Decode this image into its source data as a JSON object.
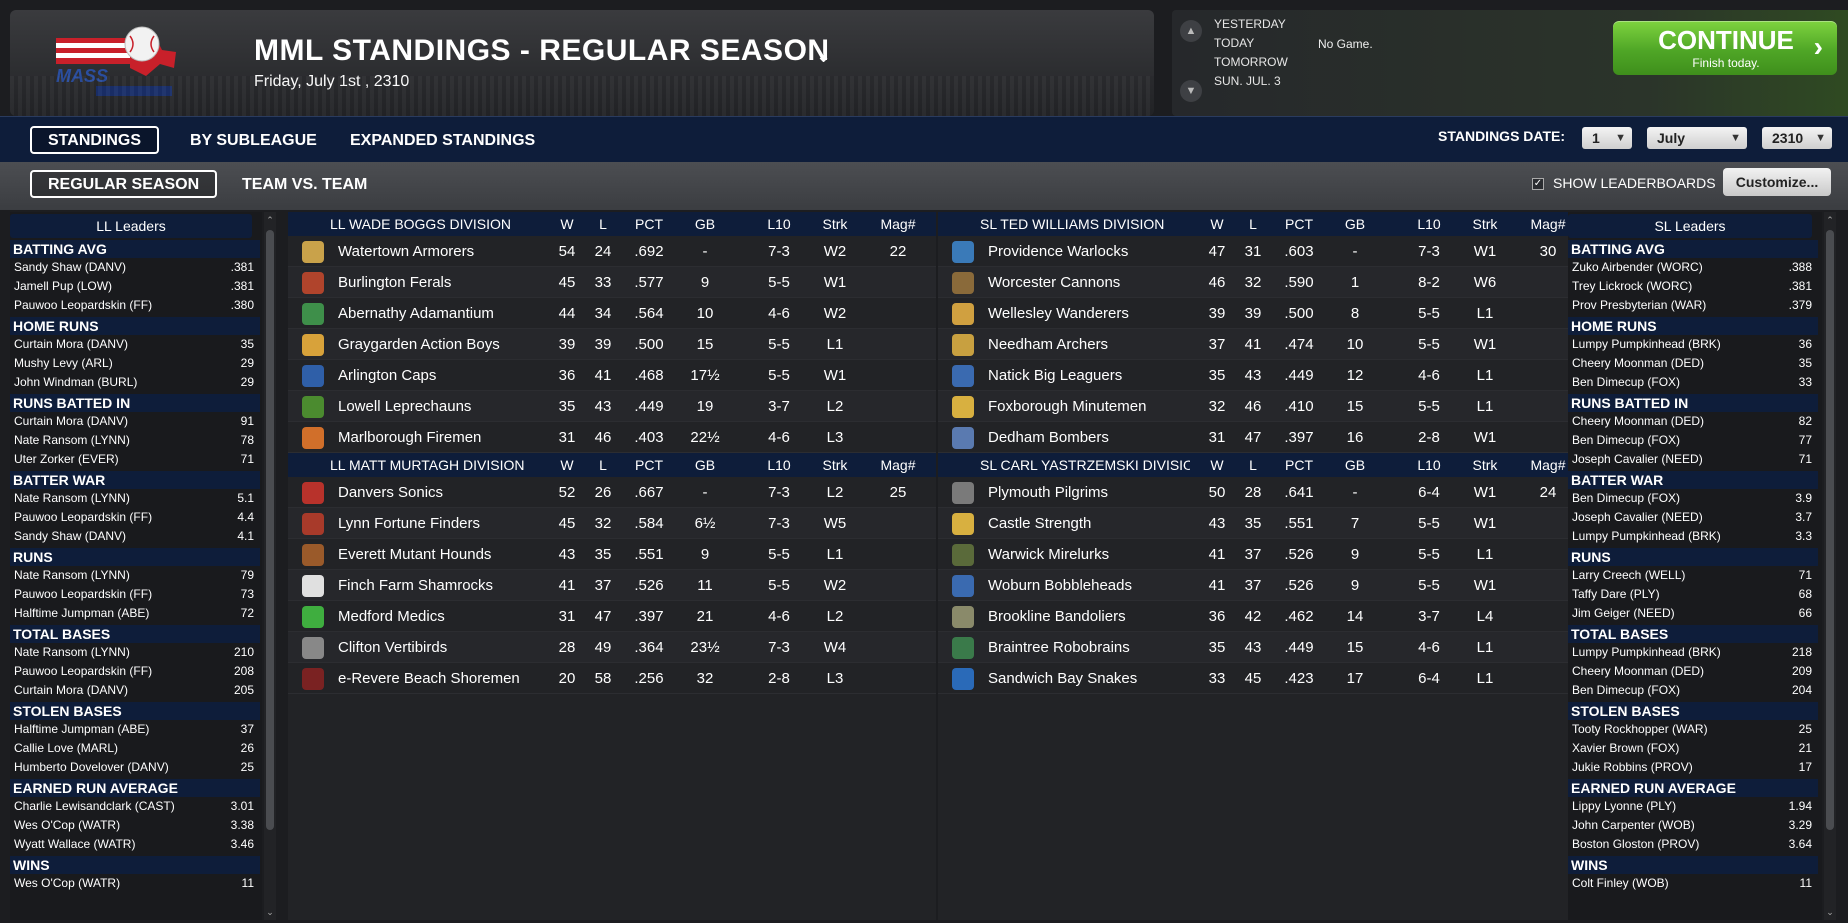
{
  "header": {
    "title": "MML STANDINGS - REGULAR SEASON",
    "date": "Friday, July 1st , 2310",
    "logo_text": "MASS"
  },
  "game_panel": {
    "yesterday": "YESTERDAY",
    "today": "TODAY",
    "tomorrow": "TOMORROW",
    "next_day": "SUN. JUL. 3",
    "no_game": "No Game.",
    "continue_label": "CONTINUE",
    "continue_sub": "Finish today."
  },
  "tabs": {
    "standings": "STANDINGS",
    "by_subleague": "BY SUBLEAGUE",
    "expanded": "EXPANDED STANDINGS",
    "regular_season": "REGULAR SEASON",
    "team_vs_team": "TEAM VS. TEAM"
  },
  "controls": {
    "standings_date_label": "STANDINGS DATE:",
    "day": "1",
    "month": "July",
    "year": "2310",
    "show_leaderboards": "SHOW LEADERBOARDS",
    "customize": "Customize..."
  },
  "columns": {
    "w": "W",
    "l": "L",
    "pct": "PCT",
    "gb": "GB",
    "l10": "L10",
    "strk": "Strk",
    "mag": "Mag#"
  },
  "ll_leaders": {
    "title": "LL Leaders",
    "categories": [
      {
        "name": "BATTING AVG",
        "rows": [
          {
            "n": "Sandy Shaw (DANV)",
            "v": ".381"
          },
          {
            "n": "Jamell Pup (LOW)",
            "v": ".381"
          },
          {
            "n": "Pauwoo Leopardskin (FF)",
            "v": ".380"
          }
        ]
      },
      {
        "name": "HOME RUNS",
        "rows": [
          {
            "n": "Curtain Mora (DANV)",
            "v": "35"
          },
          {
            "n": "Mushy Levy (ARL)",
            "v": "29"
          },
          {
            "n": "John Windman (BURL)",
            "v": "29"
          }
        ]
      },
      {
        "name": "RUNS BATTED IN",
        "rows": [
          {
            "n": "Curtain Mora (DANV)",
            "v": "91"
          },
          {
            "n": "Nate Ransom (LYNN)",
            "v": "78"
          },
          {
            "n": "Uter Zorker (EVER)",
            "v": "71"
          }
        ]
      },
      {
        "name": "BATTER WAR",
        "rows": [
          {
            "n": "Nate Ransom (LYNN)",
            "v": "5.1"
          },
          {
            "n": "Pauwoo Leopardskin (FF)",
            "v": "4.4"
          },
          {
            "n": "Sandy Shaw (DANV)",
            "v": "4.1"
          }
        ]
      },
      {
        "name": "RUNS",
        "rows": [
          {
            "n": "Nate Ransom (LYNN)",
            "v": "79"
          },
          {
            "n": "Pauwoo Leopardskin (FF)",
            "v": "73"
          },
          {
            "n": "Halftime Jumpman (ABE)",
            "v": "72"
          }
        ]
      },
      {
        "name": "TOTAL BASES",
        "rows": [
          {
            "n": "Nate Ransom (LYNN)",
            "v": "210"
          },
          {
            "n": "Pauwoo Leopardskin (FF)",
            "v": "208"
          },
          {
            "n": "Curtain Mora (DANV)",
            "v": "205"
          }
        ]
      },
      {
        "name": "STOLEN BASES",
        "rows": [
          {
            "n": "Halftime Jumpman (ABE)",
            "v": "37"
          },
          {
            "n": "Callie Love (MARL)",
            "v": "26"
          },
          {
            "n": "Humberto Dovelover (DANV)",
            "v": "25"
          }
        ]
      },
      {
        "name": "EARNED RUN AVERAGE",
        "rows": [
          {
            "n": "Charlie Lewisandclark (CAST)",
            "v": "3.01"
          },
          {
            "n": "Wes O'Cop (WATR)",
            "v": "3.38"
          },
          {
            "n": "Wyatt Wallace (WATR)",
            "v": "3.46"
          }
        ]
      },
      {
        "name": "WINS",
        "rows": [
          {
            "n": "Wes O'Cop (WATR)",
            "v": "11"
          }
        ]
      }
    ]
  },
  "sl_leaders": {
    "title": "SL Leaders",
    "categories": [
      {
        "name": "BATTING AVG",
        "rows": [
          {
            "n": "Zuko Airbender (WORC)",
            "v": ".388"
          },
          {
            "n": "Trey Lickrock (WORC)",
            "v": ".381"
          },
          {
            "n": "Prov Presbyterian (WAR)",
            "v": ".379"
          }
        ]
      },
      {
        "name": "HOME RUNS",
        "rows": [
          {
            "n": "Lumpy Pumpkinhead (BRK)",
            "v": "36"
          },
          {
            "n": "Cheery Moonman (DED)",
            "v": "35"
          },
          {
            "n": "Ben Dimecup (FOX)",
            "v": "33"
          }
        ]
      },
      {
        "name": "RUNS BATTED IN",
        "rows": [
          {
            "n": "Cheery Moonman (DED)",
            "v": "82"
          },
          {
            "n": "Ben Dimecup (FOX)",
            "v": "77"
          },
          {
            "n": "Joseph Cavalier (NEED)",
            "v": "71"
          }
        ]
      },
      {
        "name": "BATTER WAR",
        "rows": [
          {
            "n": "Ben Dimecup (FOX)",
            "v": "3.9"
          },
          {
            "n": "Joseph Cavalier (NEED)",
            "v": "3.7"
          },
          {
            "n": "Lumpy Pumpkinhead (BRK)",
            "v": "3.3"
          }
        ]
      },
      {
        "name": "RUNS",
        "rows": [
          {
            "n": "Larry Creech (WELL)",
            "v": "71"
          },
          {
            "n": "Taffy Dare (PLY)",
            "v": "68"
          },
          {
            "n": "Jim Geiger (NEED)",
            "v": "66"
          }
        ]
      },
      {
        "name": "TOTAL BASES",
        "rows": [
          {
            "n": "Lumpy Pumpkinhead (BRK)",
            "v": "218"
          },
          {
            "n": "Cheery Moonman (DED)",
            "v": "209"
          },
          {
            "n": "Ben Dimecup (FOX)",
            "v": "204"
          }
        ]
      },
      {
        "name": "STOLEN BASES",
        "rows": [
          {
            "n": "Tooty Rockhopper (WAR)",
            "v": "25"
          },
          {
            "n": "Xavier Brown (FOX)",
            "v": "21"
          },
          {
            "n": "Jukie Robbins (PROV)",
            "v": "17"
          }
        ]
      },
      {
        "name": "EARNED RUN AVERAGE",
        "rows": [
          {
            "n": "Lippy Lyonne (PLY)",
            "v": "1.94"
          },
          {
            "n": "John Carpenter (WOB)",
            "v": "3.29"
          },
          {
            "n": "Boston Gloston (PROV)",
            "v": "3.64"
          }
        ]
      },
      {
        "name": "WINS",
        "rows": [
          {
            "n": "Colt Finley (WOB)",
            "v": "11"
          }
        ]
      }
    ]
  },
  "ll_divisions": [
    {
      "name": "LL WADE BOGGS DIVISION",
      "teams": [
        {
          "name": "Watertown Armorers",
          "w": "54",
          "l": "24",
          "pct": ".692",
          "gb": "-",
          "l10": "7-3",
          "strk": "W2",
          "mag": "22",
          "color": "#c9a24a"
        },
        {
          "name": "Burlington Ferals",
          "w": "45",
          "l": "33",
          "pct": ".577",
          "gb": "9",
          "l10": "5-5",
          "strk": "W1",
          "mag": "",
          "color": "#b0442c"
        },
        {
          "name": "Abernathy Adamantium",
          "w": "44",
          "l": "34",
          "pct": ".564",
          "gb": "10",
          "l10": "4-6",
          "strk": "W2",
          "mag": "",
          "color": "#3e8f4a"
        },
        {
          "name": "Graygarden Action Boys",
          "w": "39",
          "l": "39",
          "pct": ".500",
          "gb": "15",
          "l10": "5-5",
          "strk": "L1",
          "mag": "",
          "color": "#d8a23a"
        },
        {
          "name": "Arlington Caps",
          "w": "36",
          "l": "41",
          "pct": ".468",
          "gb": "17½",
          "l10": "5-5",
          "strk": "W1",
          "mag": "",
          "color": "#2f5fa8"
        },
        {
          "name": "Lowell Leprechauns",
          "w": "35",
          "l": "43",
          "pct": ".449",
          "gb": "19",
          "l10": "3-7",
          "strk": "L2",
          "mag": "",
          "color": "#4b8b2f"
        },
        {
          "name": "Marlborough Firemen",
          "w": "31",
          "l": "46",
          "pct": ".403",
          "gb": "22½",
          "l10": "4-6",
          "strk": "L3",
          "mag": "",
          "color": "#d16f2a"
        }
      ]
    },
    {
      "name": "LL MATT MURTAGH DIVISION",
      "teams": [
        {
          "name": "Danvers Sonics",
          "w": "52",
          "l": "26",
          "pct": ".667",
          "gb": "-",
          "l10": "7-3",
          "strk": "L2",
          "mag": "25",
          "color": "#b8322b"
        },
        {
          "name": "Lynn Fortune Finders",
          "w": "45",
          "l": "32",
          "pct": ".584",
          "gb": "6½",
          "l10": "7-3",
          "strk": "W5",
          "mag": "",
          "color": "#a83a2a"
        },
        {
          "name": "Everett Mutant Hounds",
          "w": "43",
          "l": "35",
          "pct": ".551",
          "gb": "9",
          "l10": "5-5",
          "strk": "L1",
          "mag": "",
          "color": "#9a5a2a"
        },
        {
          "name": "Finch Farm Shamrocks",
          "w": "41",
          "l": "37",
          "pct": ".526",
          "gb": "11",
          "l10": "5-5",
          "strk": "W2",
          "mag": "",
          "color": "#e0e0e0"
        },
        {
          "name": "Medford Medics",
          "w": "31",
          "l": "47",
          "pct": ".397",
          "gb": "21",
          "l10": "4-6",
          "strk": "L2",
          "mag": "",
          "color": "#3fae3f"
        },
        {
          "name": "Clifton Vertibirds",
          "w": "28",
          "l": "49",
          "pct": ".364",
          "gb": "23½",
          "l10": "7-3",
          "strk": "W4",
          "mag": "",
          "color": "#888888"
        },
        {
          "name": "e-Revere Beach Shoremen",
          "w": "20",
          "l": "58",
          "pct": ".256",
          "gb": "32",
          "l10": "2-8",
          "strk": "L3",
          "mag": "",
          "color": "#7a2222"
        }
      ]
    }
  ],
  "sl_divisions": [
    {
      "name": "SL TED WILLIAMS DIVISION",
      "teams": [
        {
          "name": "Providence Warlocks",
          "w": "47",
          "l": "31",
          "pct": ".603",
          "gb": "-",
          "l10": "7-3",
          "strk": "W1",
          "mag": "30",
          "color": "#3a7ab8"
        },
        {
          "name": "Worcester Cannons",
          "w": "46",
          "l": "32",
          "pct": ".590",
          "gb": "1",
          "l10": "8-2",
          "strk": "W6",
          "mag": "",
          "color": "#8a6a3a"
        },
        {
          "name": "Wellesley Wanderers",
          "w": "39",
          "l": "39",
          "pct": ".500",
          "gb": "8",
          "l10": "5-5",
          "strk": "L1",
          "mag": "",
          "color": "#d0a040"
        },
        {
          "name": "Needham Archers",
          "w": "37",
          "l": "41",
          "pct": ".474",
          "gb": "10",
          "l10": "5-5",
          "strk": "W1",
          "mag": "",
          "color": "#c8a040"
        },
        {
          "name": "Natick Big Leaguers",
          "w": "35",
          "l": "43",
          "pct": ".449",
          "gb": "12",
          "l10": "4-6",
          "strk": "L1",
          "mag": "",
          "color": "#3a6ab0"
        },
        {
          "name": "Foxborough Minutemen",
          "w": "32",
          "l": "46",
          "pct": ".410",
          "gb": "15",
          "l10": "5-5",
          "strk": "L1",
          "mag": "",
          "color": "#d8b040"
        },
        {
          "name": "Dedham Bombers",
          "w": "31",
          "l": "47",
          "pct": ".397",
          "gb": "16",
          "l10": "2-8",
          "strk": "W1",
          "mag": "",
          "color": "#5a7ab0"
        }
      ]
    },
    {
      "name": "SL CARL YASTRZEMSKI DIVISION",
      "teams": [
        {
          "name": "Plymouth Pilgrims",
          "w": "50",
          "l": "28",
          "pct": ".641",
          "gb": "-",
          "l10": "6-4",
          "strk": "W1",
          "mag": "24",
          "color": "#7a7a7a"
        },
        {
          "name": "Castle Strength",
          "w": "43",
          "l": "35",
          "pct": ".551",
          "gb": "7",
          "l10": "5-5",
          "strk": "W1",
          "mag": "",
          "color": "#d8b040"
        },
        {
          "name": "Warwick Mirelurks",
          "w": "41",
          "l": "37",
          "pct": ".526",
          "gb": "9",
          "l10": "5-5",
          "strk": "L1",
          "mag": "",
          "color": "#5a6a3a"
        },
        {
          "name": "Woburn Bobbleheads",
          "w": "41",
          "l": "37",
          "pct": ".526",
          "gb": "9",
          "l10": "5-5",
          "strk": "W1",
          "mag": "",
          "color": "#3a6ab0"
        },
        {
          "name": "Brookline Bandoliers",
          "w": "36",
          "l": "42",
          "pct": ".462",
          "gb": "14",
          "l10": "3-7",
          "strk": "L4",
          "mag": "",
          "color": "#8a8a6a"
        },
        {
          "name": "Braintree Robobrains",
          "w": "35",
          "l": "43",
          "pct": ".449",
          "gb": "15",
          "l10": "4-6",
          "strk": "L1",
          "mag": "",
          "color": "#3a7a4a"
        },
        {
          "name": "Sandwich Bay Snakes",
          "w": "33",
          "l": "45",
          "pct": ".423",
          "gb": "17",
          "l10": "6-4",
          "strk": "L1",
          "mag": "",
          "color": "#2a6ab8"
        }
      ]
    }
  ],
  "colors": {
    "accent_green": "#4fa626",
    "nav_blue": "#0e1d3a"
  }
}
